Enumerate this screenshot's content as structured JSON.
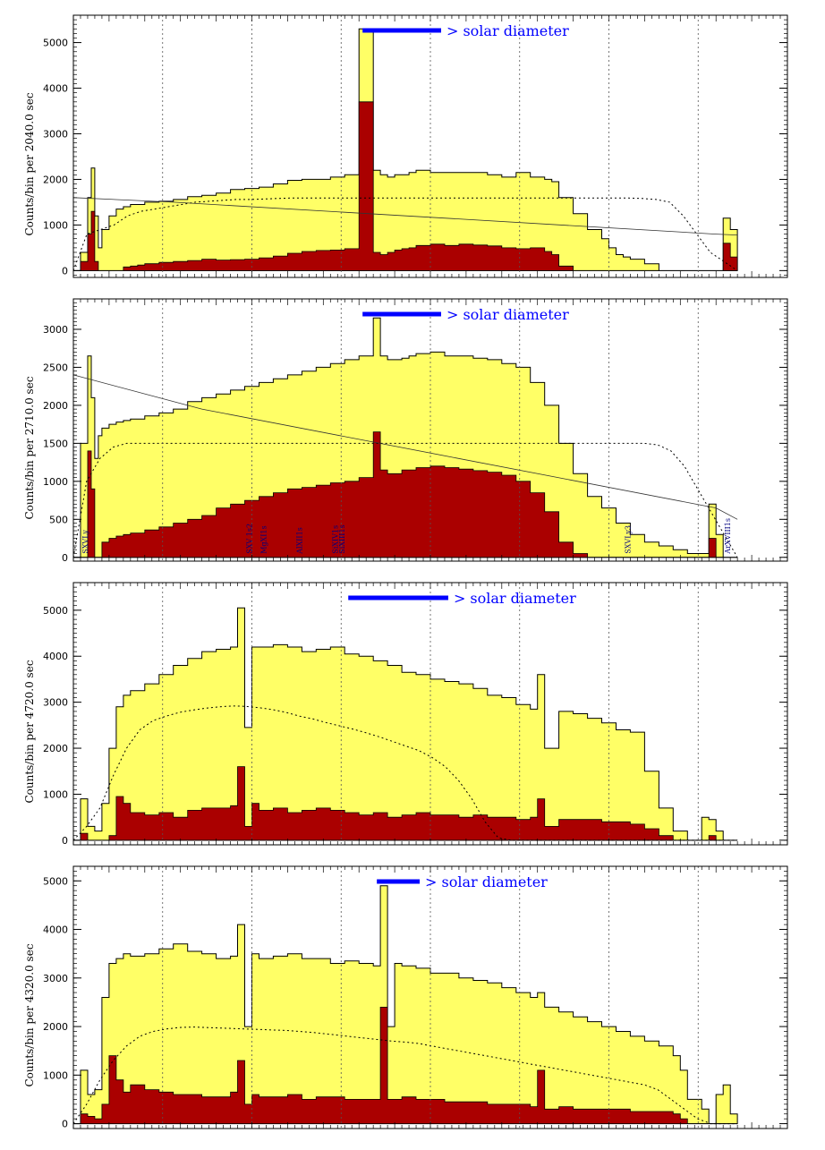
{
  "colors": {
    "total_fill": "#ffff66",
    "core_fill": "#aa0000",
    "legend_blue": "#0000ff",
    "line_label": "#000080",
    "frame": "#000000"
  },
  "chart_data": [
    {
      "type": "area",
      "ylabel": "Counts/bin per  2040.0 sec",
      "ylim": [
        -150,
        5600
      ],
      "yticks": [
        0,
        1000,
        2000,
        3000,
        4000,
        5000
      ],
      "xlim": [
        0,
        100
      ],
      "grid": "vertical dotted",
      "legend": {
        "text": "> solar diameter",
        "bar": [
          40.5,
          51.5
        ]
      },
      "x": [
        0,
        1,
        2,
        2.5,
        3,
        3.5,
        4,
        5,
        6,
        7,
        8,
        9,
        10,
        12,
        14,
        16,
        18,
        20,
        22,
        24,
        26,
        28,
        30,
        32,
        34,
        36,
        38,
        40,
        42,
        43,
        44,
        45,
        46,
        47,
        48,
        50,
        52,
        54,
        56,
        58,
        60,
        62,
        64,
        66,
        67,
        68,
        70,
        72,
        74,
        75,
        76,
        77,
        78,
        80,
        82,
        84,
        86,
        88,
        89,
        90,
        91,
        92,
        93
      ],
      "series": [
        {
          "name": "",
          "values": [
            0,
            400,
            1600,
            2250,
            1200,
            500,
            900,
            1200,
            1350,
            1400,
            1450,
            1450,
            1500,
            1520,
            1560,
            1620,
            1650,
            1700,
            1780,
            1800,
            1830,
            1900,
            1980,
            2000,
            2000,
            2050,
            2100,
            5300,
            2200,
            2100,
            2050,
            2100,
            2100,
            2150,
            2200,
            2150,
            2150,
            2150,
            2150,
            2100,
            2050,
            2150,
            2050,
            2000,
            1950,
            1600,
            1250,
            900,
            700,
            500,
            350,
            300,
            250,
            150,
            0,
            0,
            0,
            0,
            0,
            0,
            1150,
            900,
            400
          ]
        },
        {
          "name": "",
          "values": [
            0,
            200,
            800,
            1300,
            200,
            0,
            0,
            0,
            0,
            80,
            100,
            120,
            150,
            180,
            200,
            220,
            250,
            230,
            240,
            250,
            280,
            320,
            380,
            420,
            440,
            450,
            480,
            3700,
            400,
            350,
            400,
            450,
            480,
            500,
            550,
            580,
            550,
            580,
            560,
            540,
            500,
            480,
            500,
            420,
            350,
            100,
            0,
            0,
            0,
            0,
            0,
            0,
            0,
            0,
            0,
            0,
            0,
            0,
            0,
            0,
            600,
            300,
            0
          ]
        }
      ],
      "model_curve": [
        0,
        800,
        900,
        1000,
        1200,
        1300,
        1350,
        1400,
        1450,
        1500,
        1520,
        1540,
        1560,
        1560,
        1570,
        1580,
        1590,
        1590,
        1590,
        1590,
        1590,
        1590,
        1590,
        1590,
        1590,
        1590,
        1590,
        1590,
        1590,
        1590,
        1590,
        1590,
        1590,
        1590,
        1590,
        1590,
        1590,
        1590,
        1590,
        1590,
        1590,
        1590,
        1580,
        1560,
        1500,
        1200,
        800,
        400,
        200,
        0
      ],
      "background_line": [
        [
          0,
          1600
        ],
        [
          14,
          1500
        ],
        [
          90,
          800
        ],
        [
          93,
          780
        ]
      ]
    },
    {
      "type": "area",
      "ylabel": "Counts/bin per  2710.0 sec",
      "ylim": [
        -50,
        3400
      ],
      "yticks": [
        0,
        500,
        1000,
        1500,
        2000,
        2500,
        3000
      ],
      "xlim": [
        0,
        100
      ],
      "grid": "vertical dotted",
      "legend": {
        "text": "> solar diameter",
        "bar": [
          40.5,
          51.5
        ]
      },
      "line_labels": [
        "SXVLy",
        "SXV 1s2",
        "MgXI1s",
        "AlXII1s",
        "SiXIV1s",
        "SiXIII1s",
        "SXVLy3",
        "ArXVIII1s"
      ],
      "x": [
        0,
        1,
        2,
        2.5,
        3,
        3.5,
        4,
        5,
        6,
        7,
        8,
        10,
        12,
        14,
        16,
        18,
        20,
        22,
        24,
        26,
        28,
        30,
        32,
        34,
        36,
        38,
        40,
        42,
        43,
        44,
        45,
        46,
        47,
        48,
        50,
        52,
        54,
        56,
        58,
        60,
        62,
        64,
        66,
        68,
        70,
        72,
        74,
        76,
        78,
        80,
        82,
        84,
        86,
        88,
        89,
        90,
        91,
        92,
        93
      ],
      "series": [
        {
          "name": "",
          "values": [
            0,
            1500,
            2650,
            2100,
            1300,
            1600,
            1700,
            1750,
            1780,
            1800,
            1820,
            1860,
            1900,
            1950,
            2050,
            2100,
            2150,
            2200,
            2250,
            2300,
            2350,
            2400,
            2450,
            2500,
            2550,
            2600,
            2650,
            3150,
            2650,
            2600,
            2600,
            2620,
            2650,
            2680,
            2700,
            2650,
            2650,
            2620,
            2600,
            2550,
            2500,
            2300,
            2000,
            1500,
            1100,
            800,
            650,
            450,
            300,
            200,
            150,
            100,
            50,
            50,
            700,
            300,
            0,
            0,
            0
          ]
        },
        {
          "name": "",
          "values": [
            0,
            0,
            1400,
            900,
            0,
            0,
            200,
            250,
            280,
            300,
            320,
            360,
            400,
            450,
            500,
            550,
            650,
            700,
            750,
            800,
            850,
            900,
            920,
            950,
            980,
            1000,
            1050,
            1650,
            1150,
            1100,
            1100,
            1150,
            1150,
            1180,
            1200,
            1180,
            1160,
            1140,
            1120,
            1080,
            1000,
            850,
            600,
            200,
            50,
            0,
            0,
            0,
            0,
            0,
            0,
            0,
            0,
            0,
            250,
            0,
            0,
            0,
            0
          ]
        }
      ],
      "model_curve": [
        0,
        1000,
        1300,
        1450,
        1500,
        1500,
        1500,
        1500,
        1500,
        1500,
        1500,
        1500,
        1500,
        1500,
        1500,
        1500,
        1500,
        1500,
        1500,
        1500,
        1500,
        1500,
        1500,
        1500,
        1500,
        1500,
        1500,
        1500,
        1500,
        1500,
        1500,
        1500,
        1500,
        1500,
        1500,
        1500,
        1500,
        1500,
        1500,
        1500,
        1500,
        1500,
        1500,
        1500,
        1480,
        1400,
        1200,
        900,
        600,
        300,
        0
      ],
      "background_line": [
        [
          0,
          2400
        ],
        [
          18,
          1950
        ],
        [
          90,
          650
        ],
        [
          93,
          500
        ]
      ]
    },
    {
      "type": "area",
      "ylabel": "Counts/bin per  4720.0 sec",
      "ylim": [
        -100,
        5600
      ],
      "yticks": [
        0,
        1000,
        2000,
        3000,
        4000,
        5000
      ],
      "xlim": [
        0,
        100
      ],
      "grid": "vertical dotted",
      "legend": {
        "text": "> solar diameter",
        "bar": [
          38.5,
          52.5
        ]
      },
      "x": [
        0,
        1,
        2,
        3,
        4,
        5,
        6,
        7,
        8,
        10,
        12,
        14,
        16,
        18,
        20,
        22,
        23,
        24,
        25,
        26,
        28,
        30,
        32,
        34,
        36,
        38,
        40,
        42,
        44,
        46,
        48,
        50,
        52,
        54,
        56,
        58,
        60,
        62,
        64,
        65,
        66,
        68,
        70,
        72,
        74,
        76,
        78,
        80,
        82,
        84,
        86,
        88,
        89,
        90,
        91,
        92,
        93
      ],
      "series": [
        {
          "name": "",
          "values": [
            0,
            900,
            300,
            200,
            800,
            2000,
            2900,
            3150,
            3250,
            3400,
            3600,
            3800,
            3950,
            4100,
            4150,
            4200,
            5050,
            2450,
            4200,
            4200,
            4250,
            4200,
            4100,
            4150,
            4200,
            4050,
            4000,
            3900,
            3800,
            3650,
            3600,
            3500,
            3450,
            3400,
            3300,
            3150,
            3100,
            2950,
            2850,
            3600,
            2000,
            2800,
            2750,
            2650,
            2550,
            2400,
            2350,
            1500,
            700,
            200,
            0,
            500,
            450,
            200,
            0,
            0,
            0
          ]
        },
        {
          "name": "",
          "values": [
            0,
            150,
            0,
            0,
            0,
            100,
            950,
            800,
            600,
            550,
            600,
            500,
            650,
            700,
            700,
            750,
            1600,
            300,
            800,
            650,
            700,
            600,
            650,
            700,
            650,
            600,
            550,
            600,
            500,
            550,
            600,
            550,
            550,
            500,
            550,
            500,
            500,
            450,
            500,
            900,
            300,
            450,
            450,
            450,
            400,
            400,
            350,
            250,
            100,
            0,
            0,
            0,
            100,
            0,
            0,
            0,
            0
          ]
        }
      ],
      "model_curve": [
        0,
        300,
        700,
        1400,
        2000,
        2400,
        2600,
        2700,
        2780,
        2830,
        2870,
        2900,
        2920,
        2910,
        2880,
        2840,
        2780,
        2700,
        2640,
        2560,
        2490,
        2420,
        2340,
        2250,
        2150,
        2050,
        1950,
        1800,
        1600,
        1300,
        900,
        400,
        50,
        0,
        0,
        0,
        0,
        0,
        0,
        0,
        0,
        0,
        0,
        0,
        0,
        0,
        0,
        0,
        0,
        0,
        0
      ]
    },
    {
      "type": "area",
      "ylabel": "Counts/bin per  4320.0 sec",
      "ylim": [
        -100,
        5300
      ],
      "yticks": [
        0,
        1000,
        2000,
        3000,
        4000,
        5000
      ],
      "xlim": [
        0,
        100
      ],
      "grid": "vertical dotted",
      "legend": {
        "text": "> solar diameter",
        "bar": [
          42.5,
          48.5
        ]
      },
      "x": [
        0,
        1,
        2,
        3,
        4,
        5,
        6,
        7,
        8,
        10,
        12,
        14,
        16,
        18,
        20,
        22,
        23,
        24,
        25,
        26,
        28,
        30,
        32,
        34,
        36,
        38,
        40,
        42,
        43,
        44,
        45,
        46,
        48,
        50,
        52,
        54,
        56,
        58,
        60,
        62,
        64,
        65,
        66,
        68,
        70,
        72,
        74,
        76,
        78,
        80,
        82,
        84,
        85,
        86,
        88,
        89,
        90,
        91,
        92,
        93
      ],
      "series": [
        {
          "name": "",
          "values": [
            0,
            1100,
            600,
            700,
            2600,
            3300,
            3400,
            3500,
            3450,
            3500,
            3600,
            3700,
            3550,
            3500,
            3400,
            3450,
            4100,
            2000,
            3500,
            3400,
            3450,
            3500,
            3400,
            3400,
            3300,
            3350,
            3300,
            3250,
            4900,
            2000,
            3300,
            3250,
            3200,
            3100,
            3100,
            3000,
            2950,
            2900,
            2800,
            2700,
            2600,
            2700,
            2400,
            2300,
            2200,
            2100,
            2000,
            1900,
            1800,
            1700,
            1600,
            1400,
            1100,
            500,
            300,
            0,
            600,
            800,
            200,
            0
          ]
        },
        {
          "name": "",
          "values": [
            0,
            200,
            150,
            100,
            400,
            1400,
            900,
            650,
            800,
            700,
            650,
            600,
            600,
            550,
            550,
            650,
            1300,
            400,
            600,
            550,
            550,
            600,
            500,
            550,
            550,
            500,
            500,
            500,
            2400,
            500,
            500,
            550,
            500,
            500,
            450,
            450,
            450,
            400,
            400,
            400,
            350,
            1100,
            300,
            350,
            300,
            300,
            300,
            300,
            250,
            250,
            250,
            200,
            100,
            0,
            0,
            0,
            0,
            0,
            0,
            0
          ]
        }
      ],
      "model_curve": [
        0,
        400,
        900,
        1300,
        1600,
        1800,
        1900,
        1950,
        1980,
        1990,
        1980,
        1970,
        1960,
        1950,
        1940,
        1930,
        1920,
        1900,
        1880,
        1850,
        1820,
        1790,
        1760,
        1730,
        1700,
        1680,
        1650,
        1600,
        1550,
        1500,
        1450,
        1400,
        1350,
        1300,
        1250,
        1200,
        1150,
        1100,
        1050,
        1000,
        950,
        900,
        850,
        800,
        700,
        500,
        300,
        100,
        0,
        0,
        0
      ]
    }
  ]
}
